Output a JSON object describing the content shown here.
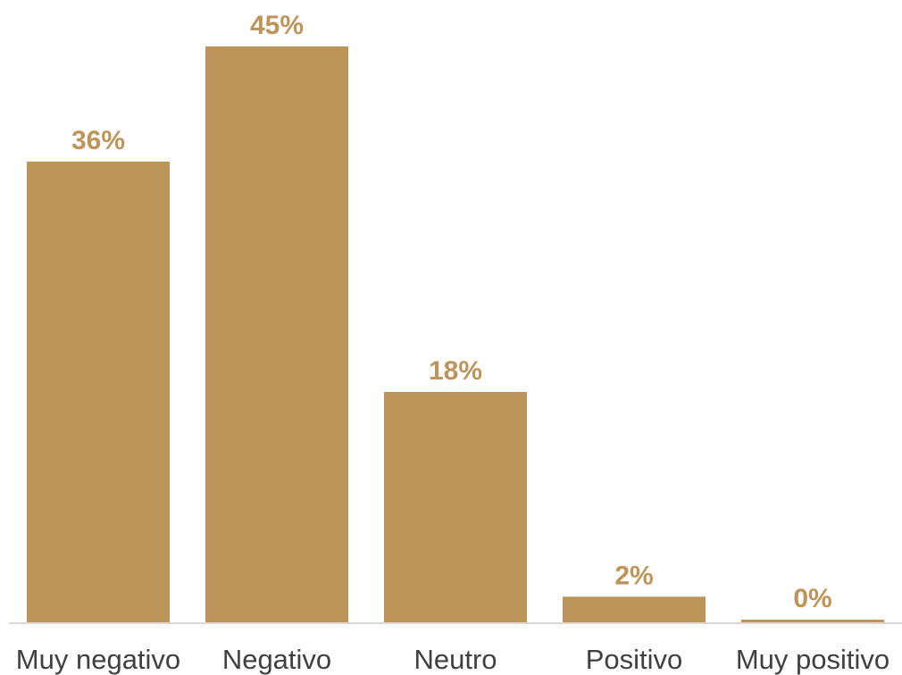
{
  "colors": {
    "bar": "#bd955b",
    "label": "#bd955b",
    "axis": "#d9d9d9",
    "category_text": "#404040"
  },
  "chart_data": {
    "type": "bar",
    "title": "",
    "xlabel": "",
    "ylabel": "",
    "categories": [
      "Muy negativo",
      "Negativo",
      "Neutro",
      "Positivo",
      "Muy positivo"
    ],
    "values": [
      36,
      45,
      18,
      2,
      0
    ],
    "value_labels": [
      "36%",
      "45%",
      "18%",
      "2%",
      "0%"
    ],
    "unit": "%",
    "ylim": [
      0,
      45
    ],
    "grid": false,
    "legend": "none"
  }
}
